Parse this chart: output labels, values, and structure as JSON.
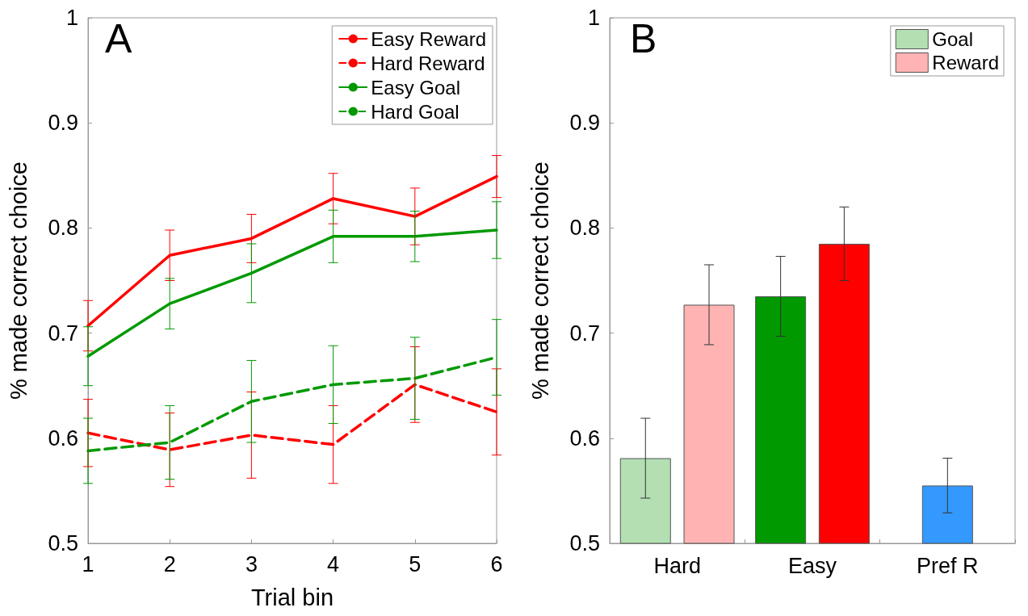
{
  "chart_data": [
    {
      "type": "line",
      "title": "A",
      "xlabel": "Trial bin",
      "ylabel": "% made correct choice",
      "x": [
        1,
        2,
        3,
        4,
        5,
        6
      ],
      "xlim": [
        1,
        6
      ],
      "xticks": [
        1,
        2,
        3,
        4,
        5,
        6
      ],
      "ylim": [
        0.5,
        1
      ],
      "yticks": [
        0.5,
        0.6,
        0.7,
        0.8,
        0.9,
        1
      ],
      "grid": false,
      "legend": "top right",
      "marker": "none",
      "series": [
        {
          "name": "Easy Reward",
          "color": "#ff0000",
          "line_style": "solid",
          "values": [
            0.707,
            0.774,
            0.79,
            0.828,
            0.811,
            0.849
          ],
          "errors": [
            0.024,
            0.024,
            0.023,
            0.024,
            0.027,
            0.02
          ]
        },
        {
          "name": "Hard Reward",
          "color": "#ff0000",
          "line_style": "dashed",
          "values": [
            0.605,
            0.589,
            0.603,
            0.594,
            0.651,
            0.625
          ],
          "errors": [
            0.032,
            0.035,
            0.041,
            0.037,
            0.036,
            0.041
          ]
        },
        {
          "name": "Easy Goal",
          "color": "#009900",
          "line_style": "solid",
          "values": [
            0.678,
            0.728,
            0.757,
            0.792,
            0.792,
            0.798
          ],
          "errors": [
            0.028,
            0.024,
            0.028,
            0.025,
            0.024,
            0.027
          ]
        },
        {
          "name": "Hard Goal",
          "color": "#009900",
          "line_style": "dashed",
          "values": [
            0.588,
            0.596,
            0.635,
            0.651,
            0.657,
            0.677
          ],
          "errors": [
            0.031,
            0.035,
            0.039,
            0.037,
            0.039,
            0.036
          ]
        }
      ]
    },
    {
      "type": "bar",
      "title": "B",
      "ylabel": "% made correct choice",
      "categories": [
        "Hard",
        "Easy",
        "Pref R"
      ],
      "ylim": [
        0.5,
        1
      ],
      "yticks": [
        0.5,
        0.6,
        0.7,
        0.8,
        0.9,
        1
      ],
      "grid": false,
      "legend": "top right",
      "series": [
        {
          "name": "Goal",
          "color": "#b3dfb3",
          "colors": [
            "#b3dfb3",
            "#009900",
            null
          ],
          "values": [
            0.581,
            0.735,
            null
          ],
          "errors": [
            0.038,
            0.038,
            null
          ]
        },
        {
          "name": "Reward",
          "color": "#ffb3b3",
          "colors": [
            "#ffb3b3",
            "#ff0000",
            null
          ],
          "values": [
            0.727,
            0.785,
            null
          ],
          "errors": [
            0.038,
            0.035,
            null
          ]
        },
        {
          "color": "#3399ff",
          "values": [
            null,
            null,
            0.555
          ],
          "errors": [
            null,
            null,
            0.026
          ]
        }
      ]
    }
  ]
}
